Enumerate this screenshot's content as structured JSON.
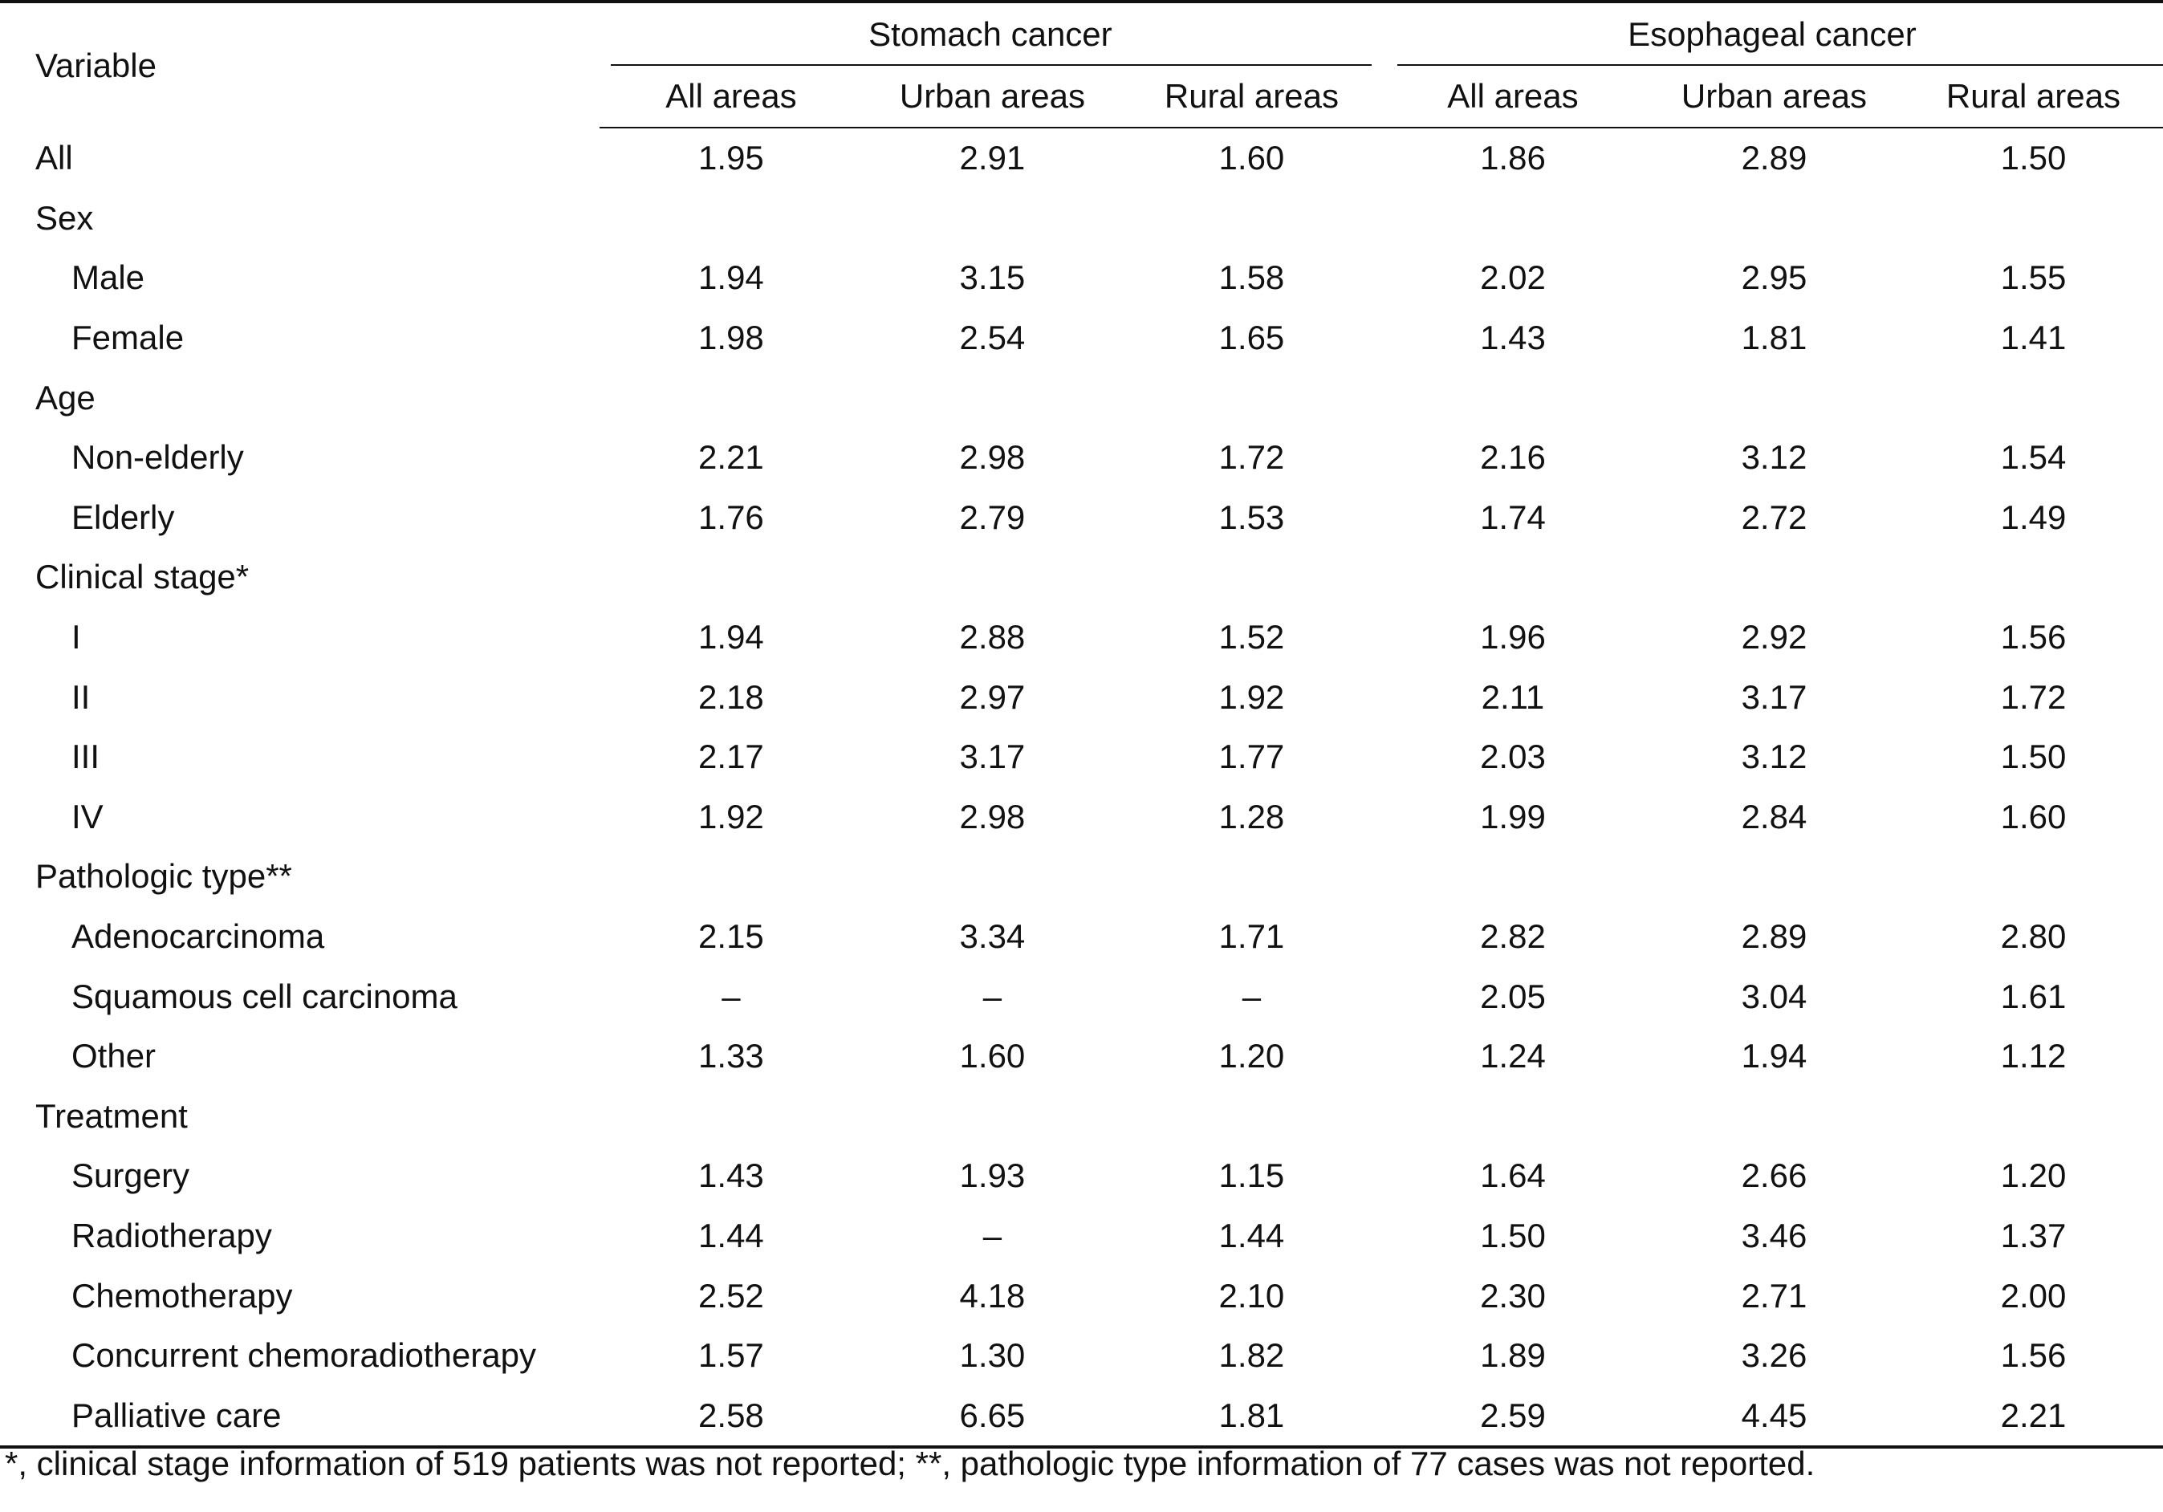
{
  "headers": {
    "variable": "Variable",
    "stomach": "Stomach cancer",
    "esophageal": "Esophageal cancer",
    "sub": [
      "All areas",
      "Urban areas",
      "Rural areas",
      "All areas",
      "Urban areas",
      "Rural areas"
    ]
  },
  "rows": [
    {
      "label": "All",
      "indent": false,
      "values": [
        "1.95",
        "2.91",
        "1.60",
        "1.86",
        "2.89",
        "1.50"
      ]
    },
    {
      "label": "Sex",
      "indent": false,
      "values": [
        "",
        "",
        "",
        "",
        "",
        ""
      ]
    },
    {
      "label": "Male",
      "indent": true,
      "values": [
        "1.94",
        "3.15",
        "1.58",
        "2.02",
        "2.95",
        "1.55"
      ]
    },
    {
      "label": "Female",
      "indent": true,
      "values": [
        "1.98",
        "2.54",
        "1.65",
        "1.43",
        "1.81",
        "1.41"
      ]
    },
    {
      "label": "Age",
      "indent": false,
      "values": [
        "",
        "",
        "",
        "",
        "",
        ""
      ]
    },
    {
      "label": "Non-elderly",
      "indent": true,
      "values": [
        "2.21",
        "2.98",
        "1.72",
        "2.16",
        "3.12",
        "1.54"
      ]
    },
    {
      "label": "Elderly",
      "indent": true,
      "values": [
        "1.76",
        "2.79",
        "1.53",
        "1.74",
        "2.72",
        "1.49"
      ]
    },
    {
      "label": "Clinical stage*",
      "indent": false,
      "values": [
        "",
        "",
        "",
        "",
        "",
        ""
      ]
    },
    {
      "label": "I",
      "indent": true,
      "values": [
        "1.94",
        "2.88",
        "1.52",
        "1.96",
        "2.92",
        "1.56"
      ]
    },
    {
      "label": "II",
      "indent": true,
      "values": [
        "2.18",
        "2.97",
        "1.92",
        "2.11",
        "3.17",
        "1.72"
      ]
    },
    {
      "label": "III",
      "indent": true,
      "values": [
        "2.17",
        "3.17",
        "1.77",
        "2.03",
        "3.12",
        "1.50"
      ]
    },
    {
      "label": "IV",
      "indent": true,
      "values": [
        "1.92",
        "2.98",
        "1.28",
        "1.99",
        "2.84",
        "1.60"
      ]
    },
    {
      "label": "Pathologic type**",
      "indent": false,
      "values": [
        "",
        "",
        "",
        "",
        "",
        ""
      ]
    },
    {
      "label": "Adenocarcinoma",
      "indent": true,
      "values": [
        "2.15",
        "3.34",
        "1.71",
        "2.82",
        "2.89",
        "2.80"
      ]
    },
    {
      "label": "Squamous cell carcinoma",
      "indent": true,
      "values": [
        "–",
        "–",
        "–",
        "2.05",
        "3.04",
        "1.61"
      ]
    },
    {
      "label": "Other",
      "indent": true,
      "values": [
        "1.33",
        "1.60",
        "1.20",
        "1.24",
        "1.94",
        "1.12"
      ]
    },
    {
      "label": "Treatment",
      "indent": false,
      "values": [
        "",
        "",
        "",
        "",
        "",
        ""
      ]
    },
    {
      "label": "Surgery",
      "indent": true,
      "values": [
        "1.43",
        "1.93",
        "1.15",
        "1.64",
        "2.66",
        "1.20"
      ]
    },
    {
      "label": "Radiotherapy",
      "indent": true,
      "values": [
        "1.44",
        "–",
        "1.44",
        "1.50",
        "3.46",
        "1.37"
      ]
    },
    {
      "label": "Chemotherapy",
      "indent": true,
      "values": [
        "2.52",
        "4.18",
        "2.10",
        "2.30",
        "2.71",
        "2.00"
      ]
    },
    {
      "label": "Concurrent chemoradiotherapy",
      "indent": true,
      "values": [
        "1.57",
        "1.30",
        "1.82",
        "1.89",
        "3.26",
        "1.56"
      ]
    },
    {
      "label": "Palliative care",
      "indent": true,
      "values": [
        "2.58",
        "6.65",
        "1.81",
        "2.59",
        "4.45",
        "2.21"
      ]
    }
  ],
  "footnote": "*, clinical stage information of 519 patients was not reported; **, pathologic type information of 77 cases was not reported."
}
